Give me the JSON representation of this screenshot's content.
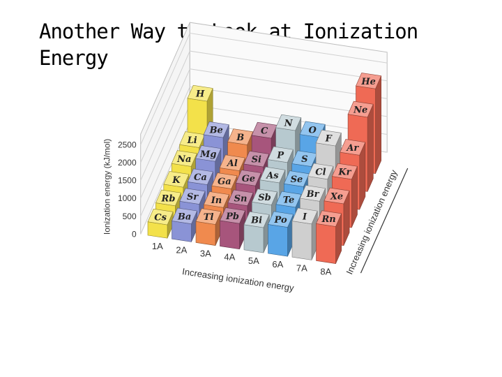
{
  "slide": {
    "title": "Another Way to Look at Ionization Energy"
  },
  "chart_data": {
    "type": "bar3d",
    "ylabel": "Ionization energy (kJ/mol)",
    "yticks": [
      "0",
      "500",
      "1000",
      "1500",
      "2000",
      "2500"
    ],
    "ylim": [
      0,
      2500
    ],
    "x_axis_label": "Increasing ionization energy",
    "depth_axis_label": "Increasing ionization energy",
    "groups": [
      {
        "name": "1A",
        "color": "#f3e14a",
        "elements": [
          {
            "symbol": "H",
            "value": 1312
          },
          {
            "symbol": "Li",
            "value": 520
          },
          {
            "symbol": "Na",
            "value": 496
          },
          {
            "symbol": "K",
            "value": 419
          },
          {
            "symbol": "Rb",
            "value": 403
          },
          {
            "symbol": "Cs",
            "value": 376
          }
        ]
      },
      {
        "name": "2A",
        "color": "#8a93d6",
        "elements": [
          {
            "symbol": "Be",
            "value": 900
          },
          {
            "symbol": "Mg",
            "value": 738
          },
          {
            "symbol": "Ca",
            "value": 590
          },
          {
            "symbol": "Sr",
            "value": 549
          },
          {
            "symbol": "Ba",
            "value": 503
          }
        ]
      },
      {
        "name": "3A",
        "color": "#f08a4e",
        "elements": [
          {
            "symbol": "B",
            "value": 801
          },
          {
            "symbol": "Al",
            "value": 578
          },
          {
            "symbol": "Ga",
            "value": 579
          },
          {
            "symbol": "In",
            "value": 558
          },
          {
            "symbol": "Tl",
            "value": 589
          }
        ]
      },
      {
        "name": "4A",
        "color": "#a7557c",
        "elements": [
          {
            "symbol": "C",
            "value": 1086
          },
          {
            "symbol": "Si",
            "value": 787
          },
          {
            "symbol": "Ge",
            "value": 762
          },
          {
            "symbol": "Sn",
            "value": 709
          },
          {
            "symbol": "Pb",
            "value": 716
          }
        ]
      },
      {
        "name": "5A",
        "color": "#b7c9cf",
        "elements": [
          {
            "symbol": "N",
            "value": 1402
          },
          {
            "symbol": "P",
            "value": 1012
          },
          {
            "symbol": "As",
            "value": 947
          },
          {
            "symbol": "Sb",
            "value": 834
          },
          {
            "symbol": "Bi",
            "value": 703
          }
        ]
      },
      {
        "name": "6A",
        "color": "#59a5e6",
        "elements": [
          {
            "symbol": "O",
            "value": 1314
          },
          {
            "symbol": "S",
            "value": 1000
          },
          {
            "symbol": "Se",
            "value": 941
          },
          {
            "symbol": "Te",
            "value": 869
          },
          {
            "symbol": "Po",
            "value": 812
          }
        ]
      },
      {
        "name": "7A",
        "color": "#cfcfcf",
        "elements": [
          {
            "symbol": "F",
            "value": 1681
          },
          {
            "symbol": "Cl",
            "value": 1251
          },
          {
            "symbol": "Br",
            "value": 1140
          },
          {
            "symbol": "I",
            "value": 1008
          }
        ]
      },
      {
        "name": "8A",
        "color": "#ef6a55",
        "elements": [
          {
            "symbol": "He",
            "value": 2372
          },
          {
            "symbol": "Ne",
            "value": 2081
          },
          {
            "symbol": "Ar",
            "value": 1521
          },
          {
            "symbol": "Kr",
            "value": 1351
          },
          {
            "symbol": "Xe",
            "value": 1170
          },
          {
            "symbol": "Rn",
            "value": 1037
          }
        ]
      }
    ]
  }
}
